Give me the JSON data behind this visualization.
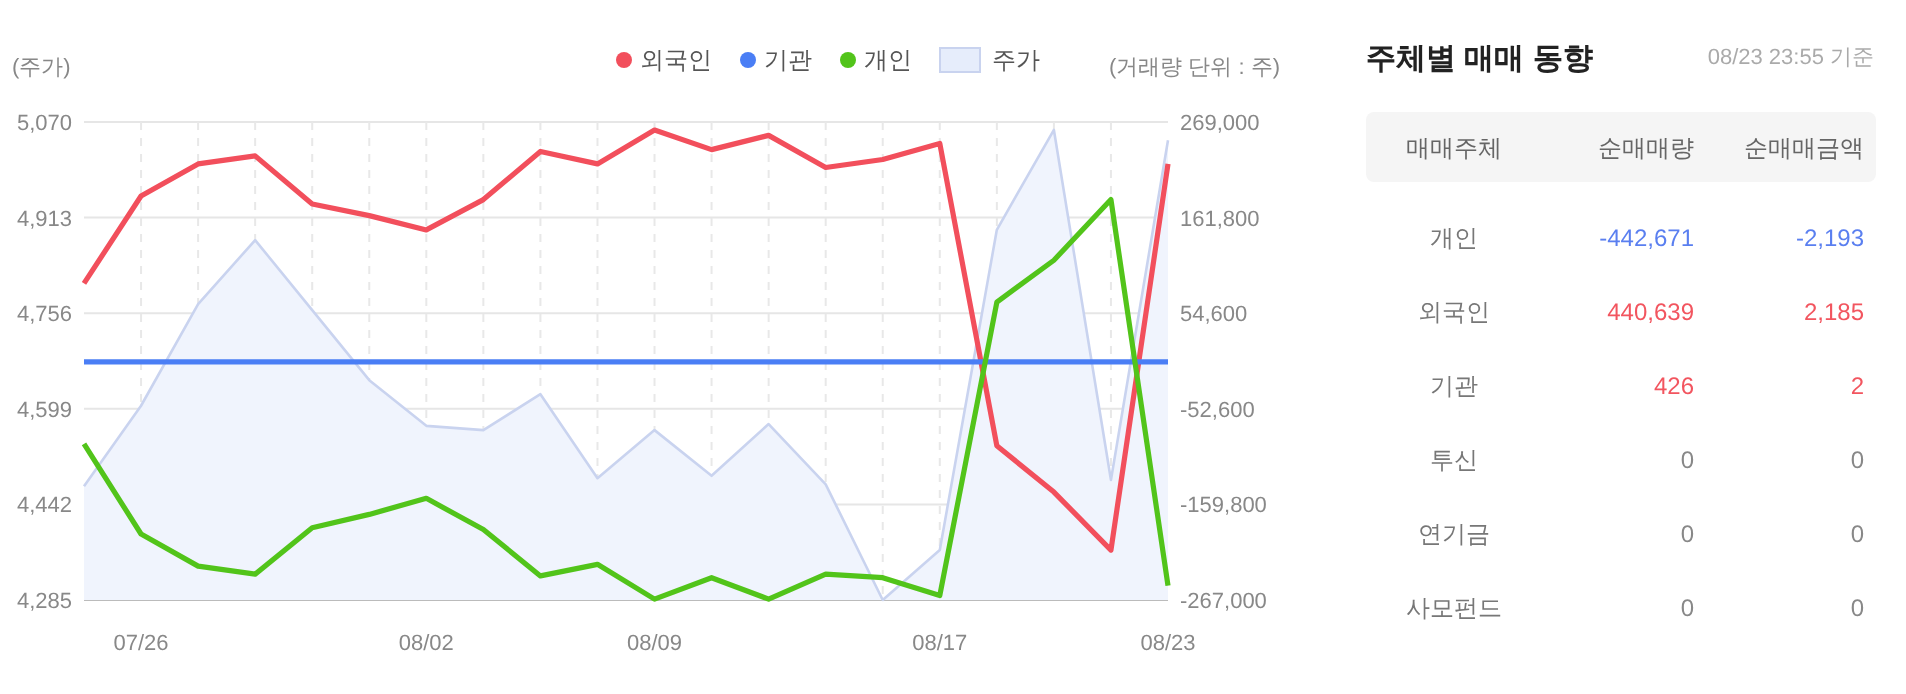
{
  "chart_data": [
    {
      "type": "line",
      "ylabel": "(주가)",
      "y2label": "(거래량 단위 : 주)",
      "legend": "top right",
      "grid": true,
      "categories": [
        null,
        "07/26",
        null,
        null,
        null,
        null,
        "08/02",
        null,
        null,
        null,
        "08/09",
        null,
        null,
        null,
        null,
        "08/17",
        null,
        null,
        null,
        "08/23"
      ],
      "ylim": [
        4285,
        5070
      ],
      "yticks": [
        {
          "value": 4285,
          "label": "4,285"
        },
        {
          "value": 4442,
          "label": "4,442"
        },
        {
          "value": 4599,
          "label": "4,599"
        },
        {
          "value": 4756,
          "label": "4,756"
        },
        {
          "value": 4913,
          "label": "4,913"
        },
        {
          "value": 5070,
          "label": "5,070"
        }
      ],
      "y2lim": [
        -267000,
        269000
      ],
      "y2ticks": [
        {
          "value": -267000,
          "label": "-267,000"
        },
        {
          "value": -159800,
          "label": "-159,800"
        },
        {
          "value": -52600,
          "label": "-52,600"
        },
        {
          "value": 54600,
          "label": "54,600"
        },
        {
          "value": 161800,
          "label": "161,800"
        },
        {
          "value": 269000,
          "label": "269,000"
        }
      ],
      "series": [
        {
          "name": "외국인",
          "color": "#f24f5c",
          "axis": "y2",
          "values": [
            88000,
            186000,
            222000,
            231000,
            177000,
            164000,
            148000,
            182000,
            236000,
            222000,
            260000,
            238000,
            254000,
            218000,
            227000,
            245000,
            -94000,
            -146000,
            -211000,
            222000
          ]
        },
        {
          "name": "기관",
          "color": "#4a7ef5",
          "axis": "y2",
          "values": [
            0,
            0,
            0,
            0,
            0,
            0,
            0,
            0,
            0,
            0,
            0,
            0,
            0,
            0,
            0,
            0,
            0,
            0,
            0,
            0
          ]
        },
        {
          "name": "개인",
          "color": "#52c41a",
          "axis": "y2",
          "values": [
            -92000,
            -193000,
            -229000,
            -238000,
            -186000,
            -171000,
            -153000,
            -188000,
            -240000,
            -227000,
            -266000,
            -242000,
            -266000,
            -238000,
            -242000,
            -262000,
            67000,
            114000,
            182000,
            -251000
          ]
        },
        {
          "name": "주가",
          "type": "area",
          "color": "#c9d3ef",
          "values": [
            4472,
            4604,
            4771,
            4876,
            4761,
            4646,
            4571,
            4564,
            4623,
            4485,
            4564,
            4489,
            4574,
            4475,
            4285,
            4367,
            4893,
            5057,
            4482,
            5040
          ]
        }
      ]
    },
    {
      "type": "other",
      "title": "주체별 매매 동향",
      "subtitle": "08/23 23:55 기준",
      "ylabel": "매매주체",
      "categories": [
        "개인",
        "외국인",
        "기관",
        "투신",
        "연기금",
        "사모펀드"
      ],
      "series": [
        {
          "name": "순매매량",
          "values": [
            -442671,
            440639,
            426,
            0,
            0,
            0
          ],
          "value_labels": [
            "-442,671",
            "440,639",
            "426",
            "0",
            "0",
            "0"
          ]
        },
        {
          "name": "순매매금액",
          "values": [
            -2193,
            2185,
            2,
            0,
            0,
            0
          ],
          "value_labels": [
            "-2,193",
            "2,185",
            "2",
            "0",
            "0",
            "0"
          ]
        }
      ]
    }
  ]
}
